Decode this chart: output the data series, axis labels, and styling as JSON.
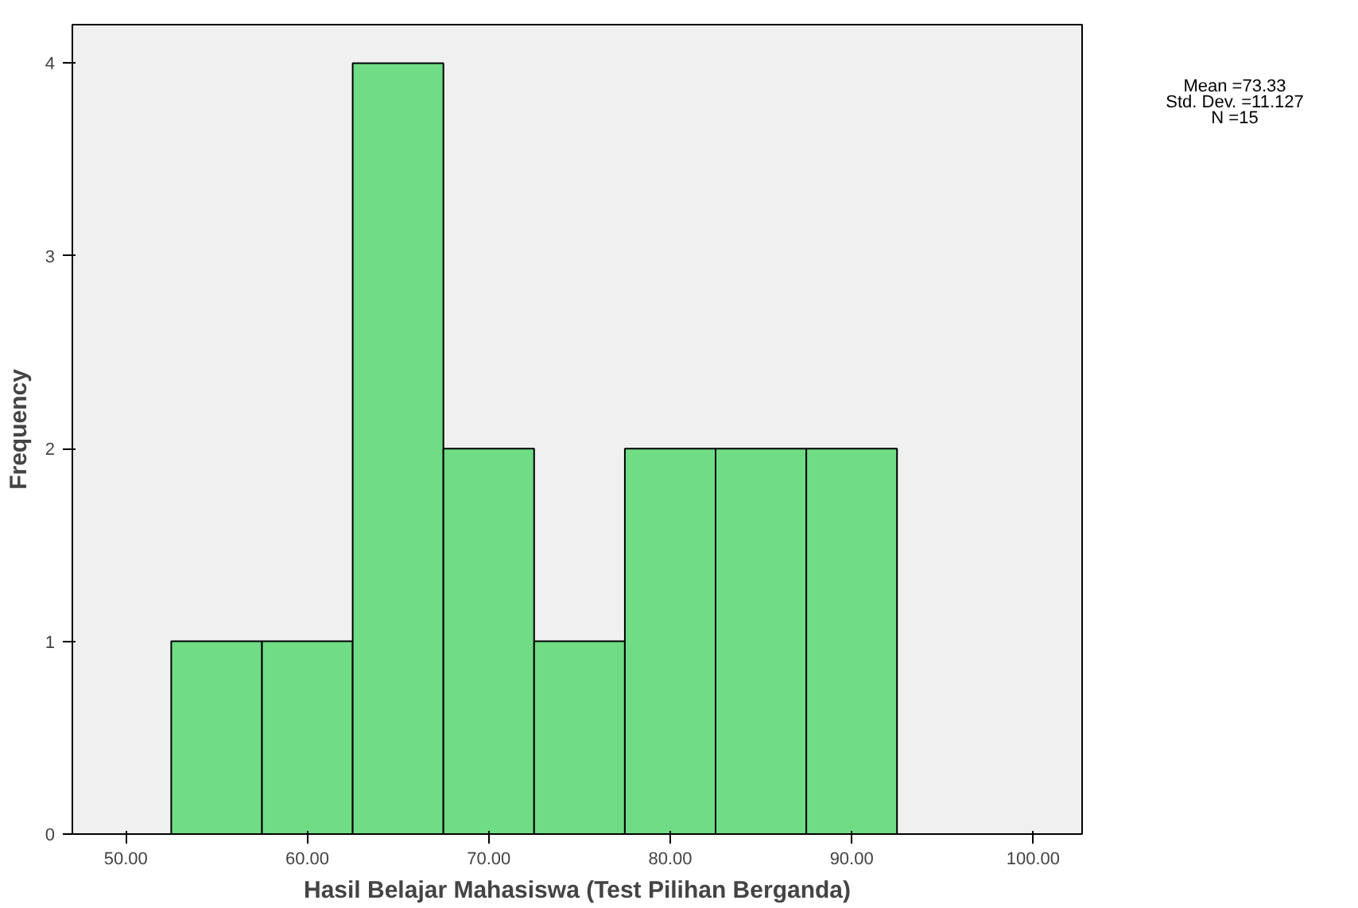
{
  "chart_data": {
    "type": "histogram",
    "xlabel": "Hasil Belajar Mahasiswa (Test Pilihan Berganda)",
    "ylabel": "Frequency",
    "bins": [
      52.5,
      57.5,
      62.5,
      67.5,
      72.5,
      77.5,
      82.5,
      87.5,
      92.5
    ],
    "values": [
      1,
      1,
      4,
      2,
      1,
      2,
      2,
      2
    ],
    "color": "#70dc86",
    "xlim": [
      47.05,
      102.7
    ],
    "ylim": [
      0,
      4.2
    ],
    "xticks": [
      {
        "value": 50,
        "label": "50.00"
      },
      {
        "value": 60,
        "label": "60.00"
      },
      {
        "value": 70,
        "label": "70.00"
      },
      {
        "value": 80,
        "label": "80.00"
      },
      {
        "value": 90,
        "label": "90.00"
      },
      {
        "value": 100,
        "label": "100.00"
      }
    ],
    "yticks": [
      0,
      1,
      2,
      3,
      4
    ],
    "grid": false,
    "annotations": [
      "Mean =73.33",
      "Std. Dev. =11.127",
      "N =15"
    ]
  }
}
